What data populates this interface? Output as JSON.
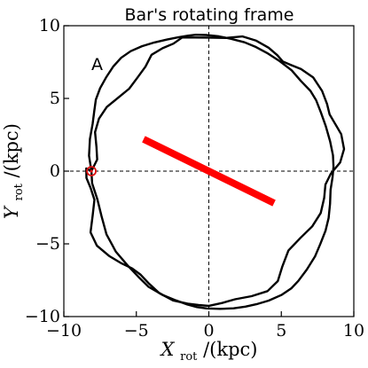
{
  "chart_data": {
    "type": "line",
    "title": "Bar's rotating frame",
    "panel_label": "A",
    "xlabel": {
      "main": "X",
      "sub": "rot",
      "unit": "/(kpc)"
    },
    "ylabel": {
      "main": "Y",
      "sub": "rot",
      "unit": "/(kpc)"
    },
    "xlim": [
      -10,
      10
    ],
    "ylim": [
      -10,
      10
    ],
    "xticks": [
      -10,
      -5,
      0,
      5,
      10
    ],
    "yticks": [
      -10,
      -5,
      0,
      5,
      10
    ],
    "xtick_labels": [
      "−10",
      "−5",
      "0",
      "5",
      "10"
    ],
    "ytick_labels": [
      "−10",
      "−5",
      "0",
      "5",
      "10"
    ],
    "reference_lines": {
      "x": 0,
      "y": 0,
      "style": "dashed"
    },
    "bar": {
      "x": [
        -4.5,
        4.5
      ],
      "y": [
        2.2,
        -2.2
      ],
      "color": "#ff0000"
    },
    "marker": {
      "x": -8.1,
      "y": 0.0,
      "color": "#dd1111"
    },
    "series": [
      {
        "x": [
          -8.1,
          -8.26,
          -8.2,
          -8.01,
          -7.9,
          -7.79,
          -7.5,
          -7.09,
          -6.59,
          -6.05,
          -5.39,
          -4.61,
          -3.76,
          -2.88,
          -2.11,
          -1.42,
          -0.89,
          -0.18,
          0.69,
          1.54,
          2.46,
          3.19,
          4.02,
          4.89,
          5.71,
          6.34,
          7.01,
          7.4,
          7.72,
          8.07,
          8.37,
          8.56,
          8.6,
          8.53,
          8.4,
          8.36,
          8.26,
          8.05,
          7.69,
          7.32,
          6.76,
          6.17,
          5.68,
          5.0,
          4.13,
          3.28,
          2.52,
          1.71,
          0.77,
          -0.15,
          -0.82,
          -1.49,
          -2.26,
          -3.19,
          -4.15,
          -4.86,
          -5.6,
          -6.41,
          -7.06,
          -7.4,
          -7.69,
          -8.05,
          -8.1
        ],
        "y": [
          0.0,
          1.06,
          2.21,
          3.27,
          4.13,
          4.92,
          5.71,
          6.44,
          7.2,
          7.79,
          8.25,
          8.59,
          8.85,
          9.05,
          9.2,
          9.32,
          9.38,
          9.36,
          9.27,
          9.1,
          8.86,
          8.56,
          8.12,
          7.56,
          6.93,
          6.21,
          5.52,
          4.88,
          4.07,
          3.09,
          2.04,
          1.09,
          0.3,
          -0.43,
          -1.28,
          -2.25,
          -3.22,
          -4.1,
          -5.01,
          -5.87,
          -6.77,
          -7.55,
          -8.07,
          -8.52,
          -8.9,
          -9.15,
          -9.32,
          -9.43,
          -9.47,
          -9.44,
          -9.35,
          -9.17,
          -8.89,
          -8.51,
          -7.96,
          -7.26,
          -6.48,
          -5.54,
          -4.35,
          -3.1,
          -1.93,
          -0.84,
          0.0
        ]
      },
      {
        "x": [
          -8.1,
          -7.7,
          -7.75,
          -7.85,
          -7.58,
          -7.04,
          -6.26,
          -5.49,
          -4.93,
          -4.37,
          -3.95,
          -3.19,
          -2.44,
          -1.84,
          -1.03,
          0.0,
          1.15,
          2.33,
          3.27,
          4.12,
          4.73,
          5.1,
          5.64,
          6.36,
          7.19,
          7.81,
          8.15,
          8.33,
          8.66,
          9.13,
          9.33,
          9.06,
          8.41,
          8.04,
          7.96,
          7.72,
          7.13,
          6.32,
          5.49,
          5.06,
          4.76,
          4.05,
          2.95,
          1.81,
          0.91,
          0.0,
          -0.71,
          -1.46,
          -2.47,
          -3.41,
          -4.12,
          -4.7,
          -5.29,
          -6.01,
          -6.88,
          -7.72,
          -8.16,
          -8.01,
          -7.89,
          -8.15,
          -8.44,
          -8.45,
          -8.1
        ],
        "y": [
          0.0,
          0.8,
          1.65,
          2.68,
          3.61,
          4.41,
          5.04,
          5.67,
          6.42,
          7.19,
          8.0,
          8.45,
          8.77,
          9.19,
          9.19,
          9.18,
          9.16,
          9.26,
          8.97,
          8.49,
          7.97,
          7.54,
          7.31,
          7.02,
          6.45,
          5.52,
          4.62,
          3.9,
          3.34,
          2.54,
          1.52,
          0.6,
          -0.18,
          -0.92,
          -1.84,
          -2.88,
          -3.8,
          -4.59,
          -5.45,
          -6.59,
          -7.56,
          -8.25,
          -8.6,
          -8.81,
          -9.07,
          -9.26,
          -9.21,
          -9.11,
          -8.89,
          -8.39,
          -7.74,
          -7.13,
          -6.69,
          -6.35,
          -5.83,
          -5.13,
          -4.21,
          -3.05,
          -1.97,
          -1.16,
          -0.47,
          0.18,
          0.0
        ]
      }
    ]
  }
}
